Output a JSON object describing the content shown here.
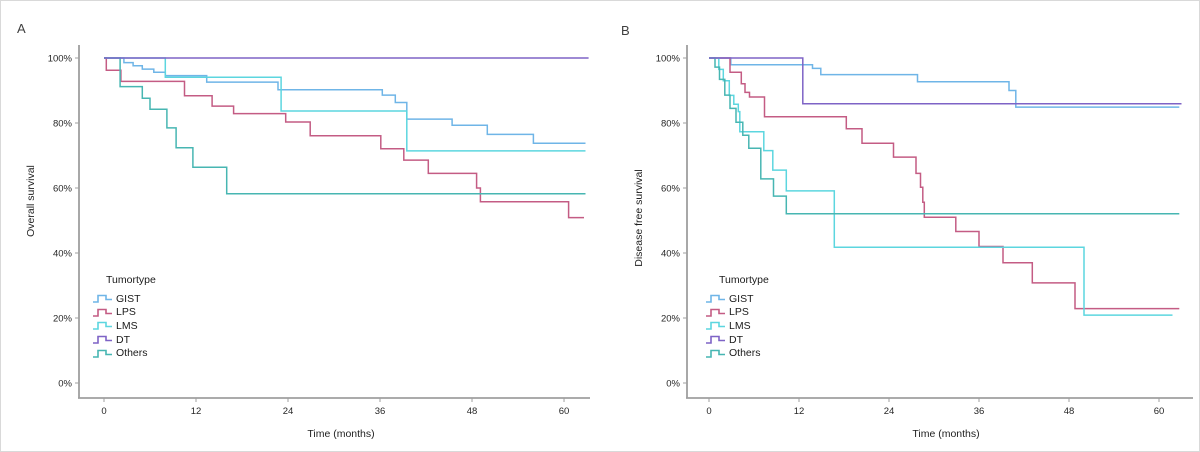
{
  "figure": {
    "description": "Two Kaplan-Meier step plots, panels A and B, survival by tumor type",
    "axis_color": "#9f9f9f",
    "tick_text_color": "#262626"
  },
  "chart_data": [
    {
      "type": "line",
      "subtype": "kaplan-meier-step",
      "panel_letter": "A",
      "ylabel": "Overall survival",
      "xlabel": "Time (months)",
      "legend_title": "Tumortype",
      "legend_position": "lower-left-inside",
      "grid": false,
      "x_ticks": [
        0,
        12,
        24,
        36,
        48,
        60
      ],
      "y_ticks": [
        100,
        80,
        60,
        40,
        20,
        0
      ],
      "y_tick_format": "percent",
      "xlim": [
        0,
        63.5
      ],
      "ylim": [
        0,
        100
      ],
      "series": [
        {
          "name": "GIST",
          "color": "#6FB5E7",
          "points": [
            [
              0,
              100
            ],
            [
              2.6,
              98.6
            ],
            [
              3.8,
              97.6
            ],
            [
              5,
              96.6
            ],
            [
              6.5,
              95.6
            ],
            [
              8,
              94.6
            ],
            [
              13.4,
              92.6
            ],
            [
              22.7,
              90.2
            ],
            [
              36.3,
              88.6
            ],
            [
              38,
              86.3
            ],
            [
              39.5,
              81.2
            ],
            [
              45.4,
              79.3
            ],
            [
              50,
              76.5
            ],
            [
              56,
              73.8
            ],
            [
              62.8,
              73.8
            ]
          ]
        },
        {
          "name": "LPS",
          "color": "#C45C84",
          "points": [
            [
              0,
              100
            ],
            [
              0.3,
              96.2
            ],
            [
              2.2,
              92.8
            ],
            [
              10.5,
              88.4
            ],
            [
              14.1,
              85.2
            ],
            [
              16.9,
              82.9
            ],
            [
              23.7,
              80.3
            ],
            [
              26.9,
              76.1
            ],
            [
              36.1,
              72.1
            ],
            [
              39.1,
              68.6
            ],
            [
              42.3,
              64.5
            ],
            [
              48.6,
              60.0
            ],
            [
              49.1,
              55.8
            ],
            [
              60.6,
              50.9
            ],
            [
              62.6,
              50.9
            ]
          ]
        },
        {
          "name": "LMS",
          "color": "#5CD6DF",
          "points": [
            [
              0,
              100
            ],
            [
              8,
              94.1
            ],
            [
              23.1,
              83.7
            ],
            [
              39.5,
              71.4
            ],
            [
              62.8,
              71.4
            ]
          ]
        },
        {
          "name": "DT",
          "color": "#7E63C6",
          "points": [
            [
              0,
              100
            ],
            [
              63.2,
              100
            ]
          ]
        },
        {
          "name": "Others",
          "color": "#47B6B2",
          "points": [
            [
              0,
              100
            ],
            [
              2.1,
              91.2
            ],
            [
              5,
              87.6
            ],
            [
              6,
              84.2
            ],
            [
              8.2,
              78.5
            ],
            [
              9.4,
              72.4
            ],
            [
              11.6,
              66.4
            ],
            [
              16,
              58.2
            ],
            [
              62.8,
              58.2
            ]
          ]
        }
      ]
    },
    {
      "type": "line",
      "subtype": "kaplan-meier-step",
      "panel_letter": "B",
      "ylabel": "Disease free survival",
      "xlabel": "Time (months)",
      "legend_title": "Tumortype",
      "legend_position": "lower-left-inside",
      "grid": false,
      "x_ticks": [
        0,
        12,
        24,
        36,
        48,
        60
      ],
      "y_ticks": [
        100,
        80,
        60,
        40,
        20,
        0
      ],
      "y_tick_format": "percent",
      "xlim": [
        0,
        63.5
      ],
      "ylim": [
        0,
        100
      ],
      "series": [
        {
          "name": "GIST",
          "color": "#6FB5E7",
          "points": [
            [
              0,
              100
            ],
            [
              2.9,
              97.9
            ],
            [
              13.8,
              96.8
            ],
            [
              14.9,
              94.9
            ],
            [
              27.8,
              92.7
            ],
            [
              40,
              90
            ],
            [
              40.9,
              84.9
            ],
            [
              62.7,
              84.9
            ]
          ]
        },
        {
          "name": "LPS",
          "color": "#C45C84",
          "points": [
            [
              0,
              100
            ],
            [
              2.8,
              95.6
            ],
            [
              4.3,
              92.1
            ],
            [
              4.8,
              89.4
            ],
            [
              5.4,
              88
            ],
            [
              7.4,
              81.9
            ],
            [
              18.3,
              78.2
            ],
            [
              20.4,
              73.8
            ],
            [
              24.6,
              69.5
            ],
            [
              27.6,
              64.5
            ],
            [
              28.2,
              60.2
            ],
            [
              28.5,
              55.6
            ],
            [
              28.7,
              51
            ],
            [
              32.9,
              46.6
            ],
            [
              36,
              42
            ],
            [
              39.2,
              37
            ],
            [
              43.1,
              30.8
            ],
            [
              48.8,
              22.9
            ],
            [
              62.7,
              22.9
            ]
          ]
        },
        {
          "name": "LMS",
          "color": "#5CD6DF",
          "points": [
            [
              0,
              100
            ],
            [
              1.3,
              96.5
            ],
            [
              1.9,
              93
            ],
            [
              2.7,
              88.5
            ],
            [
              3.3,
              85.8
            ],
            [
              3.9,
              83.5
            ],
            [
              4.1,
              77.3
            ],
            [
              7.3,
              71.5
            ],
            [
              8.5,
              65.5
            ],
            [
              10.3,
              59.1
            ],
            [
              16.7,
              41.8
            ],
            [
              50,
              20.9
            ],
            [
              61.8,
              20.9
            ]
          ]
        },
        {
          "name": "DT",
          "color": "#7E63C6",
          "points": [
            [
              0,
              100
            ],
            [
              12.5,
              85.9
            ],
            [
              63,
              85.9
            ]
          ]
        },
        {
          "name": "Others",
          "color": "#47B6B2",
          "points": [
            [
              0,
              100
            ],
            [
              0.8,
              97.2
            ],
            [
              1.4,
              93.4
            ],
            [
              2.1,
              88.6
            ],
            [
              2.8,
              84.5
            ],
            [
              3.6,
              80.2
            ],
            [
              4.5,
              76.2
            ],
            [
              5.3,
              72.2
            ],
            [
              6.9,
              62.8
            ],
            [
              8.6,
              57.5
            ],
            [
              10.3,
              52.1
            ],
            [
              62.7,
              52.1
            ]
          ]
        }
      ]
    }
  ]
}
